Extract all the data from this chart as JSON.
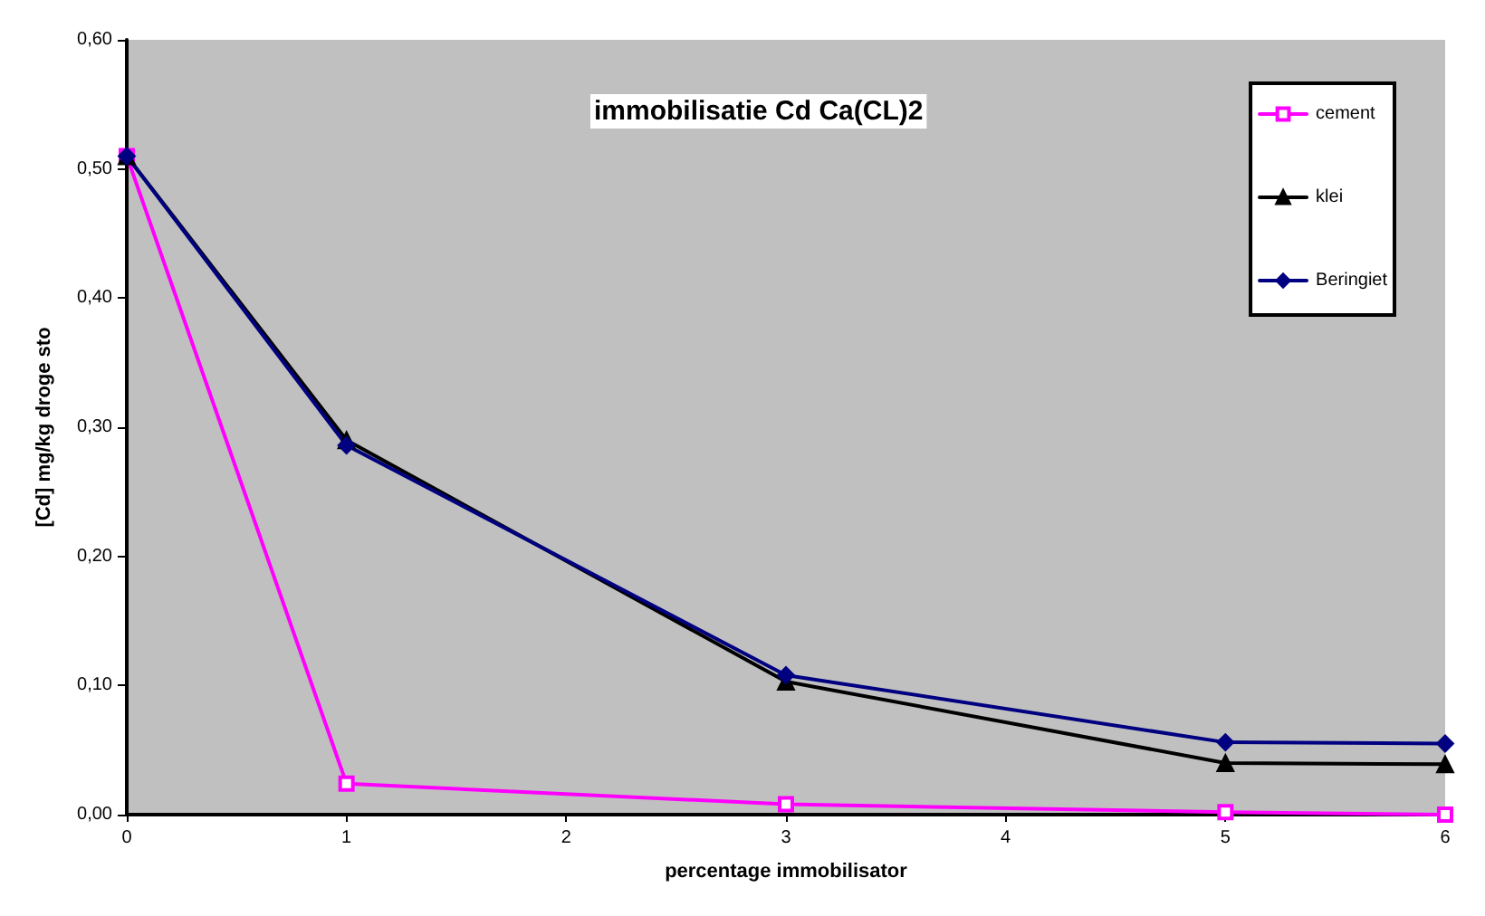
{
  "chart_data": {
    "type": "line",
    "title": "immobilisatie Cd Ca(CL)2",
    "xlabel": "percentage immobilisator",
    "ylabel": "[Cd] mg/kg droge sto",
    "x": [
      0,
      1,
      3,
      5,
      6
    ],
    "series": [
      {
        "name": "cement",
        "color": "#ff00ff",
        "marker": "square",
        "values": [
          0.51,
          0.024,
          0.008,
          0.002,
          0
        ]
      },
      {
        "name": "klei",
        "color": "#000000",
        "marker": "triangle",
        "values": [
          0.51,
          0.29,
          0.103,
          0.04,
          0.039
        ]
      },
      {
        "name": "Beringiet",
        "color": "#000080",
        "marker": "diamond",
        "values": [
          0.51,
          0.286,
          0.108,
          0.056,
          0.055
        ]
      }
    ],
    "xlim": [
      0,
      6
    ],
    "xticks": [
      0,
      1,
      2,
      3,
      4,
      5,
      6
    ],
    "ylim": [
      0,
      0.6
    ],
    "yticks": [
      {
        "value": 0,
        "label": "0,00"
      },
      {
        "value": 0.1,
        "label": "0,10"
      },
      {
        "value": 0.2,
        "label": "0,20"
      },
      {
        "value": 0.3,
        "label": "0,30"
      },
      {
        "value": 0.4,
        "label": "0,40"
      },
      {
        "value": 0.5,
        "label": "0,50"
      },
      {
        "value": 0.6,
        "label": "0,60"
      }
    ],
    "grid": false,
    "legend": "top right",
    "line_style": "solid"
  }
}
